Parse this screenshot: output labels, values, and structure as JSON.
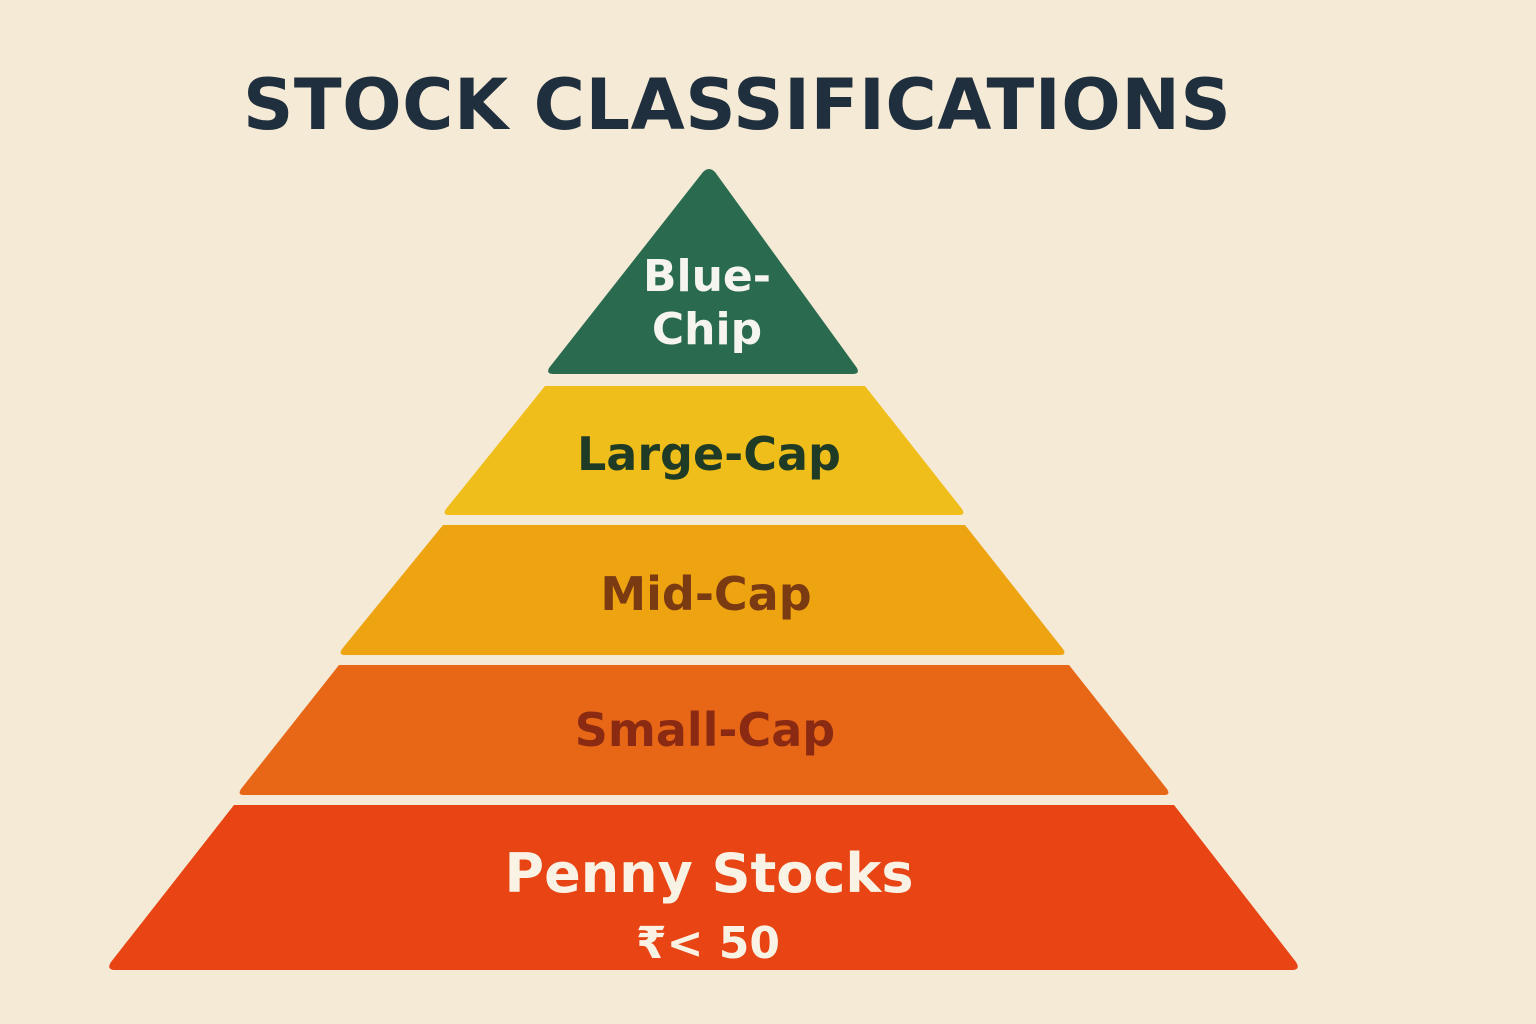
{
  "title": "STOCK CLASSIFICATIONS",
  "tiers": [
    {
      "label_lines": [
        "Blue-",
        "Chip"
      ],
      "fill": "#2a6b4f",
      "text_color": "#f5f5ee"
    },
    {
      "label_lines": [
        "Large-Cap"
      ],
      "fill": "#f0be1a",
      "text_color": "#1f3a25"
    },
    {
      "label_lines": [
        "Mid-Cap"
      ],
      "fill": "#eea311",
      "text_color": "#7a3a12"
    },
    {
      "label_lines": [
        "Small-Cap"
      ],
      "fill": "#e86717",
      "text_color": "#8a2a12"
    },
    {
      "label_lines": [
        "Penny Stocks",
        "₹< 50"
      ],
      "fill": "#e84414",
      "text_color": "#fbf2e6"
    }
  ]
}
